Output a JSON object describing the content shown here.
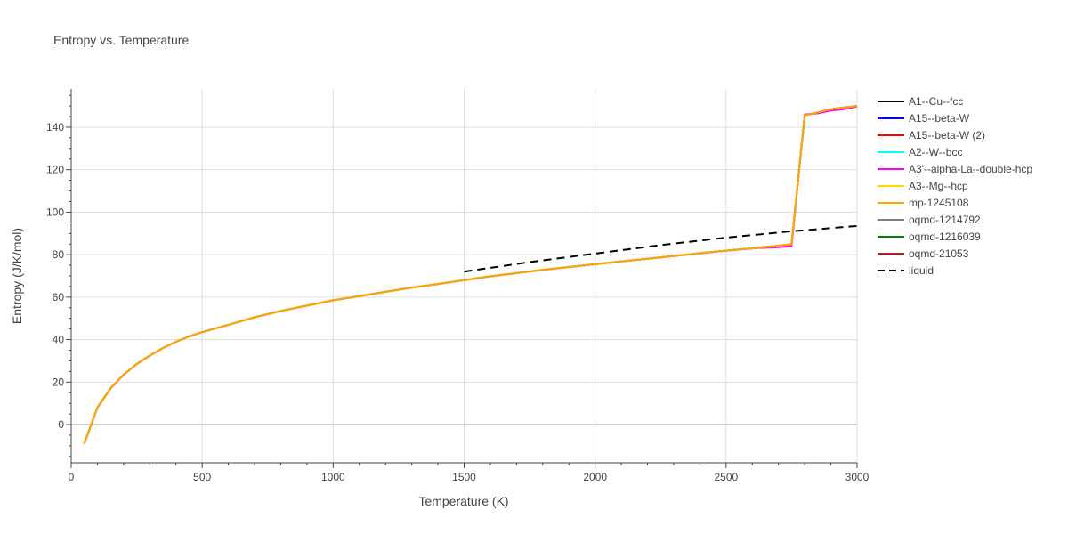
{
  "chart_data": {
    "type": "line",
    "title": "Entropy vs. Temperature",
    "xlabel": "Temperature (K)",
    "ylabel": "Entropy (J/K/mol)",
    "xlim": [
      0,
      3000
    ],
    "ylim": [
      -18,
      158
    ],
    "xticks": [
      0,
      500,
      1000,
      1500,
      2000,
      2500,
      3000
    ],
    "yticks": [
      0,
      20,
      40,
      60,
      80,
      100,
      120,
      140
    ],
    "grid": true,
    "legend_position": "right",
    "series": [
      {
        "name": "A1--Cu--fcc",
        "color": "#000000",
        "dash": "solid",
        "x": [
          50,
          100,
          150,
          200,
          250,
          300,
          350,
          400,
          450,
          500,
          600,
          700,
          800,
          900,
          1000,
          1100,
          1200,
          1300,
          1400,
          1500,
          1600,
          1700,
          1800,
          1900,
          2000,
          2100,
          2200,
          2300,
          2400,
          2500,
          2600,
          2700,
          2750,
          2800,
          2850,
          2900,
          2950,
          3000
        ],
        "y": [
          -9,
          8,
          17,
          23.5,
          28.5,
          32.5,
          36,
          39,
          41.5,
          43.5,
          47,
          50.5,
          53.5,
          56,
          58.5,
          60.5,
          62.5,
          64.5,
          66.2,
          68,
          69.8,
          71.3,
          72.8,
          74.2,
          75.5,
          76.8,
          78.1,
          79.4,
          80.7,
          81.9,
          83,
          84.2,
          85,
          145.5,
          147,
          148.5,
          149.3,
          150
        ]
      },
      {
        "name": "A15--beta-W",
        "color": "#0000ff",
        "dash": "solid",
        "x": [
          50,
          100,
          150,
          200,
          250,
          300,
          350,
          400,
          450,
          500,
          600,
          700,
          800,
          900,
          1000,
          1100,
          1200,
          1300,
          1400,
          1500,
          1600,
          1700,
          1800,
          1900,
          2000,
          2100,
          2200,
          2300,
          2400,
          2500,
          2600,
          2700,
          2750,
          2800,
          2850,
          2900,
          2950,
          3000
        ],
        "y": [
          -9,
          8,
          17,
          23.5,
          28.5,
          32.5,
          36,
          39,
          41.5,
          43.5,
          47,
          50.5,
          53.5,
          56,
          58.5,
          60.5,
          62.5,
          64.5,
          66.2,
          68,
          69.8,
          71.3,
          72.8,
          74.2,
          75.5,
          76.8,
          78.1,
          79.4,
          80.7,
          81.9,
          83,
          84.2,
          85,
          145.5,
          147,
          148.5,
          149.3,
          150
        ]
      },
      {
        "name": "A15--beta-W (2)",
        "color": "#ff0000",
        "dash": "solid",
        "x": [
          50,
          100,
          150,
          200,
          250,
          300,
          350,
          400,
          450,
          500,
          600,
          700,
          800,
          900,
          1000,
          1100,
          1200,
          1300,
          1400,
          1500,
          1600,
          1700,
          1800,
          1900,
          2000,
          2100,
          2200,
          2300,
          2400,
          2500,
          2600,
          2700,
          2750,
          2800,
          2850,
          2900,
          2950,
          3000
        ],
        "y": [
          -9,
          8,
          17,
          23.5,
          28.5,
          32.5,
          36,
          39,
          41.5,
          43.5,
          47,
          50.5,
          53.5,
          56,
          58.5,
          60.5,
          62.5,
          64.5,
          66.2,
          68,
          69.8,
          71.3,
          72.8,
          74.2,
          75.5,
          76.8,
          78.1,
          79.4,
          80.7,
          81.9,
          83,
          84.2,
          85,
          145.5,
          147,
          148.5,
          149.3,
          150
        ]
      },
      {
        "name": "A2--W--bcc",
        "color": "#00ffff",
        "dash": "solid",
        "x": [
          50,
          100,
          150,
          200,
          250,
          300,
          350,
          400,
          450,
          500,
          600,
          700,
          800,
          900,
          1000,
          1100,
          1200,
          1300,
          1400,
          1500,
          1600,
          1700,
          1800,
          1900,
          2000,
          2100,
          2200,
          2300,
          2400,
          2500,
          2600,
          2700,
          2750,
          2800,
          2850,
          2900,
          2950,
          3000
        ],
        "y": [
          -9,
          8,
          17,
          23.5,
          28.5,
          32.5,
          36,
          39,
          41.5,
          43.5,
          47,
          50.5,
          53.5,
          56,
          58.5,
          60.5,
          62.5,
          64.5,
          66.2,
          68,
          69.8,
          71.3,
          72.8,
          74.2,
          75.5,
          76.8,
          78.1,
          79.4,
          80.7,
          81.9,
          83,
          84.2,
          85,
          145.5,
          147,
          148.5,
          149.3,
          150
        ]
      },
      {
        "name": "A3'--alpha-La--double-hcp",
        "color": "#ff00ff",
        "dash": "solid",
        "x": [
          50,
          100,
          150,
          200,
          250,
          300,
          350,
          400,
          450,
          500,
          600,
          700,
          800,
          900,
          1000,
          1100,
          1200,
          1300,
          1400,
          1500,
          1600,
          1700,
          1800,
          1900,
          2000,
          2100,
          2200,
          2300,
          2400,
          2500,
          2600,
          2700,
          2750,
          2800,
          2850,
          2900,
          2950,
          3000
        ],
        "y": [
          -9,
          8,
          17,
          23.5,
          28.5,
          32.5,
          36,
          39,
          41.5,
          43.5,
          47,
          50.5,
          53.5,
          56,
          58.5,
          60.5,
          62.5,
          64.5,
          66.2,
          68,
          69.8,
          71.3,
          72.8,
          74.2,
          75.5,
          76.8,
          78.1,
          79.4,
          80.7,
          81.9,
          83,
          83.5,
          84,
          146,
          146.5,
          147.8,
          148.5,
          149.7
        ]
      },
      {
        "name": "A3--Mg--hcp",
        "color": "#ffd700",
        "dash": "solid",
        "x": [
          50,
          100,
          150,
          200,
          250,
          300,
          350,
          400,
          450,
          500,
          600,
          700,
          800,
          900,
          1000,
          1100,
          1200,
          1300,
          1400,
          1500,
          1600,
          1700,
          1800,
          1900,
          2000,
          2100,
          2200,
          2300,
          2400,
          2500,
          2600,
          2700,
          2750,
          2800,
          2850,
          2900,
          2950,
          3000
        ],
        "y": [
          -9,
          8,
          17,
          23.5,
          28.5,
          32.5,
          36,
          39,
          41.5,
          43.5,
          47,
          50.5,
          53.5,
          56,
          58.5,
          60.5,
          62.5,
          64.5,
          66.2,
          68,
          69.8,
          71.3,
          72.8,
          74.2,
          75.5,
          76.8,
          78.1,
          79.4,
          80.7,
          81.9,
          83,
          84.2,
          85,
          145.5,
          147,
          148.5,
          149.3,
          150
        ]
      },
      {
        "name": "mp-1245108",
        "color": "#ffa500",
        "dash": "solid",
        "x": [
          50,
          100,
          150,
          200,
          250,
          300,
          350,
          400,
          450,
          500,
          600,
          700,
          800,
          900,
          1000,
          1100,
          1200,
          1300,
          1400,
          1500,
          1600,
          1700,
          1800,
          1900,
          2000,
          2100,
          2200,
          2300,
          2400,
          2500,
          2600,
          2700,
          2750,
          2800,
          2850,
          2900,
          2950,
          3000
        ],
        "y": [
          -9,
          8,
          17,
          23.5,
          28.5,
          32.5,
          36,
          39,
          41.5,
          43.5,
          47,
          50.5,
          53.5,
          56,
          58.5,
          60.5,
          62.5,
          64.5,
          66.2,
          68,
          69.8,
          71.3,
          72.8,
          74.2,
          75.5,
          76.8,
          78.1,
          79.4,
          80.7,
          81.9,
          83,
          84.2,
          85,
          145.5,
          147,
          148.5,
          149.3,
          150
        ]
      },
      {
        "name": "oqmd-1214792",
        "color": "#808080",
        "dash": "solid",
        "x": [],
        "y": []
      },
      {
        "name": "oqmd-1216039",
        "color": "#008000",
        "dash": "solid",
        "x": [],
        "y": []
      },
      {
        "name": "oqmd-21053",
        "color": "#b22222",
        "dash": "solid",
        "x": [],
        "y": []
      },
      {
        "name": "liquid",
        "color": "#000000",
        "dash": "dash",
        "x": [
          1500,
          1750,
          2000,
          2250,
          2500,
          2750,
          3000
        ],
        "y": [
          72,
          76.5,
          80.5,
          84.5,
          88,
          91,
          93.5
        ]
      }
    ]
  }
}
